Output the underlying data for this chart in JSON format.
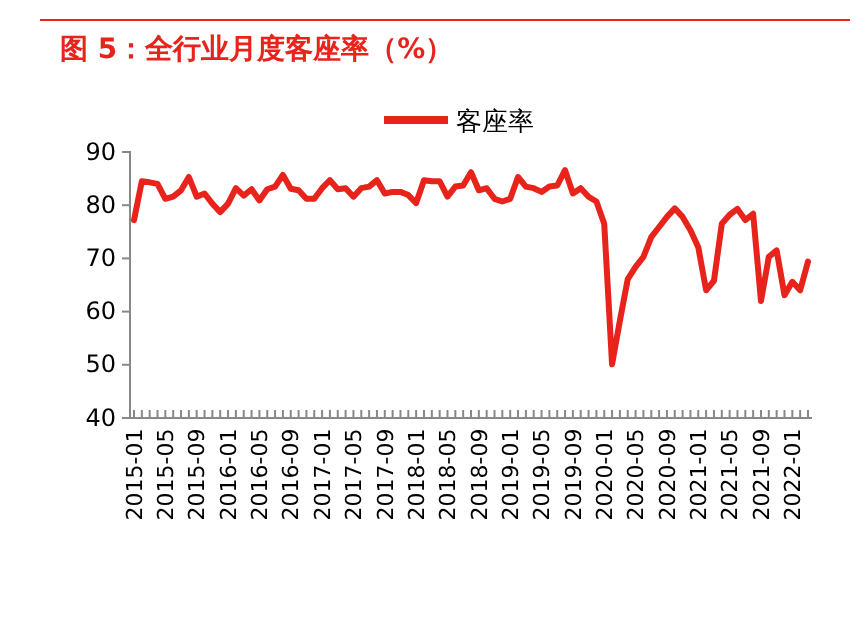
{
  "chart_data": {
    "type": "line",
    "title": "图 5：全行业月度客座率（%）",
    "categories": [
      "2015-01",
      null,
      null,
      null,
      "2015-05",
      null,
      null,
      null,
      "2015-09",
      null,
      null,
      null,
      "2016-01",
      null,
      null,
      null,
      "2016-05",
      null,
      null,
      null,
      "2016-09",
      null,
      null,
      null,
      "2017-01",
      null,
      null,
      null,
      "2017-05",
      null,
      null,
      null,
      "2017-09",
      null,
      null,
      null,
      "2018-01",
      null,
      null,
      null,
      "2018-05",
      null,
      null,
      null,
      "2018-09",
      null,
      null,
      null,
      "2019-01",
      null,
      null,
      null,
      "2019-05",
      null,
      null,
      null,
      "2019-09",
      null,
      null,
      null,
      "2020-01",
      null,
      null,
      null,
      "2020-05",
      null,
      null,
      null,
      "2020-09",
      null,
      null,
      null,
      "2021-01",
      null,
      null,
      null,
      "2021-05",
      null,
      null,
      null,
      "2021-09",
      null,
      null,
      null,
      "2022-01",
      null,
      null
    ],
    "series": [
      {
        "name": "客座率",
        "color": "#e8231b",
        "values": [
          77.2,
          84.5,
          84.3,
          84,
          81.2,
          81.6,
          82.8,
          85.3,
          81.6,
          82.2,
          80.3,
          78.7,
          80.3,
          83.2,
          81.8,
          83,
          80.9,
          83,
          83.5,
          85.7,
          83.1,
          82.8,
          81.2,
          81.2,
          83.2,
          84.7,
          83,
          83.2,
          81.6,
          83.2,
          83.5,
          84.7,
          82.2,
          82.5,
          82.5,
          81.9,
          80.4,
          84.7,
          84.5,
          84.5,
          81.6,
          83.5,
          83.7,
          86.2,
          82.8,
          83.2,
          81.2,
          80.7,
          81.2,
          85.3,
          83.5,
          83.2,
          82.5,
          83.5,
          83.7,
          86.6,
          82.2,
          83.2,
          81.6,
          80.7,
          76.5,
          50.1,
          58.3,
          66.1,
          68.4,
          70.3,
          74,
          75.9,
          77.8,
          79.4,
          77.8,
          75.3,
          72.1,
          64,
          65.8,
          76.5,
          78.2,
          79.3,
          77.2,
          78.4,
          62,
          70.3,
          71.5,
          63.1,
          65.6,
          64,
          69.4
        ]
      }
    ],
    "ylim": [
      40,
      90
    ],
    "yticks": [
      40,
      50,
      60,
      70,
      80,
      90
    ],
    "grid": false,
    "legend": "top",
    "marker": "none",
    "line_style": "solid"
  }
}
